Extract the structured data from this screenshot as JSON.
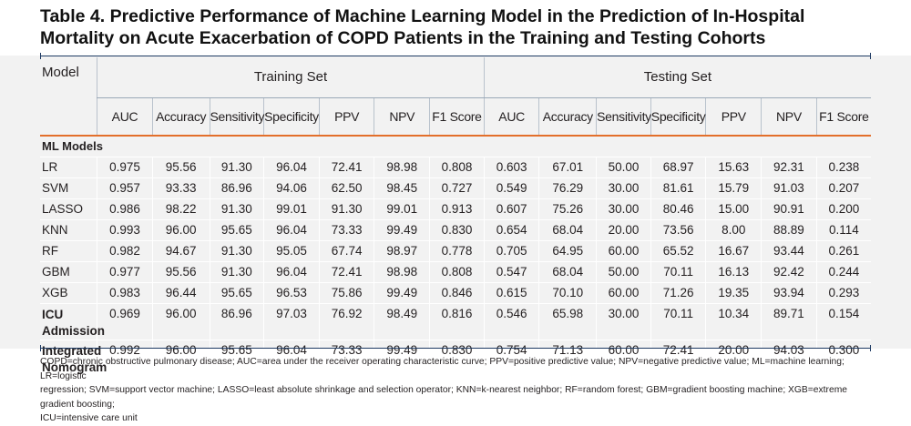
{
  "title": {
    "line1": "Table 4. Predictive Performance of Machine Learning Model in the Prediction of In-Hospital",
    "line2": "Mortality on Acute Exacerbation of COPD Patients in the Training and Testing Cohorts"
  },
  "header": {
    "model": "Model",
    "training": "Training Set",
    "testing": "Testing Set",
    "columns": [
      "AUC",
      "Accuracy",
      "Sensitivity",
      "Specificity",
      "PPV",
      "NPV",
      "F1 Score"
    ]
  },
  "section_label": "ML Models",
  "rows": [
    {
      "name": "LR",
      "train": [
        "0.975",
        "95.56",
        "91.30",
        "96.04",
        "72.41",
        "98.98",
        "0.808"
      ],
      "test": [
        "0.603",
        "67.01",
        "50.00",
        "68.97",
        "15.63",
        "92.31",
        "0.238"
      ]
    },
    {
      "name": "SVM",
      "train": [
        "0.957",
        "93.33",
        "86.96",
        "94.06",
        "62.50",
        "98.45",
        "0.727"
      ],
      "test": [
        "0.549",
        "76.29",
        "30.00",
        "81.61",
        "15.79",
        "91.03",
        "0.207"
      ]
    },
    {
      "name": "LASSO",
      "train": [
        "0.986",
        "98.22",
        "91.30",
        "99.01",
        "91.30",
        "99.01",
        "0.913"
      ],
      "test": [
        "0.607",
        "75.26",
        "30.00",
        "80.46",
        "15.00",
        "90.91",
        "0.200"
      ]
    },
    {
      "name": "KNN",
      "train": [
        "0.993",
        "96.00",
        "95.65",
        "96.04",
        "73.33",
        "99.49",
        "0.830"
      ],
      "test": [
        "0.654",
        "68.04",
        "20.00",
        "73.56",
        "8.00",
        "88.89",
        "0.114"
      ]
    },
    {
      "name": "RF",
      "train": [
        "0.982",
        "94.67",
        "91.30",
        "95.05",
        "67.74",
        "98.97",
        "0.778"
      ],
      "test": [
        "0.705",
        "64.95",
        "60.00",
        "65.52",
        "16.67",
        "93.44",
        "0.261"
      ]
    },
    {
      "name": "GBM",
      "train": [
        "0.977",
        "95.56",
        "91.30",
        "96.04",
        "72.41",
        "98.98",
        "0.808"
      ],
      "test": [
        "0.547",
        "68.04",
        "50.00",
        "70.11",
        "16.13",
        "92.42",
        "0.244"
      ]
    },
    {
      "name": "XGB",
      "train": [
        "0.983",
        "96.44",
        "95.65",
        "96.53",
        "75.86",
        "99.49",
        "0.846"
      ],
      "test": [
        "0.615",
        "70.10",
        "60.00",
        "71.26",
        "19.35",
        "93.94",
        "0.293"
      ]
    }
  ],
  "tall_rows": [
    {
      "name1": "ICU",
      "name2": "Admission",
      "train": [
        "0.969",
        "96.00",
        "86.96",
        "97.03",
        "76.92",
        "98.49",
        "0.816"
      ],
      "test": [
        "0.546",
        "65.98",
        "30.00",
        "70.11",
        "10.34",
        "89.71",
        "0.154"
      ]
    },
    {
      "name1": "Integrated",
      "name2": "Nomogram",
      "train": [
        "0.992",
        "96.00",
        "95.65",
        "96.04",
        "73.33",
        "99.49",
        "0.830"
      ],
      "test": [
        "0.754",
        "71.13",
        "60.00",
        "72.41",
        "20.00",
        "94.03",
        "0.300"
      ]
    }
  ],
  "footnote": {
    "line1": "COPD=chronic obstructive pulmonary disease; AUC=area under the receiver operating characteristic curve; PPV=positive predictive value; NPV=negative predictive value; ML=machine learning; LR=logistic",
    "line2": "regression; SVM=support vector machine; LASSO=least absolute shrinkage and selection operator; KNN=k-nearest neighbor; RF=random forest; GBM=gradient boosting machine; XGB=extreme gradient boosting;",
    "line3": "ICU=intensive care unit"
  },
  "colors": {
    "accent_orange": "#e36f2b",
    "rule_navy": "#1f3b63",
    "table_bg": "#f2f2f2"
  }
}
